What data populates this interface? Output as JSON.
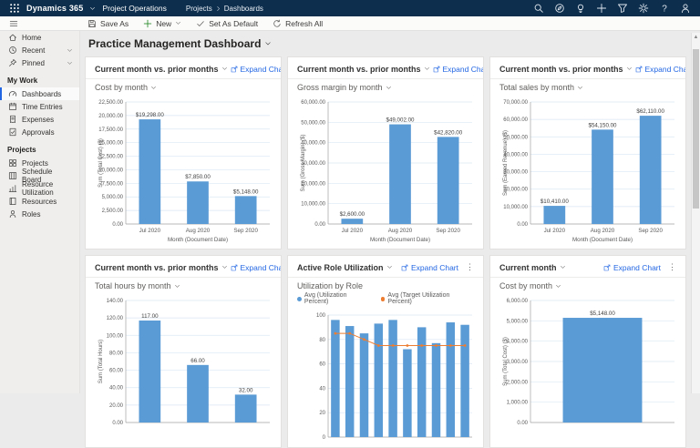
{
  "colors": {
    "topbar": "#0d2e4d",
    "accent": "#2266e3",
    "bar": "#5b9bd5",
    "line": "#ed7d31",
    "plus": "#107c10"
  },
  "header": {
    "app": "Dynamics 365",
    "environment": "Project Operations",
    "breadcrumb": [
      "Projects",
      "Dashboards"
    ],
    "icons": [
      "search",
      "compass",
      "lightbulb",
      "plus",
      "filter",
      "gear",
      "help",
      "user"
    ]
  },
  "command_bar": {
    "items": [
      {
        "label": "Save As",
        "icon": "save"
      },
      {
        "label": "New",
        "icon": "plus",
        "chevron": true
      },
      {
        "label": "Set As Default",
        "icon": "check"
      },
      {
        "label": "Refresh All",
        "icon": "refresh"
      }
    ]
  },
  "page": {
    "title": "Practice Management Dashboard"
  },
  "sidebar": {
    "top": [
      {
        "label": "Home",
        "icon": "home"
      },
      {
        "label": "Recent",
        "icon": "clock",
        "chevron": true
      },
      {
        "label": "Pinned",
        "icon": "pin",
        "chevron": true
      }
    ],
    "sections": [
      {
        "title": "My Work",
        "items": [
          {
            "label": "Dashboards",
            "icon": "gauge",
            "active": true
          },
          {
            "label": "Time Entries",
            "icon": "calendar"
          },
          {
            "label": "Expenses",
            "icon": "receipt"
          },
          {
            "label": "Approvals",
            "icon": "doccheck"
          }
        ]
      },
      {
        "title": "Projects",
        "items": [
          {
            "label": "Projects",
            "icon": "grid"
          },
          {
            "label": "Schedule Board",
            "icon": "board"
          },
          {
            "label": "Resource Utilization",
            "icon": "bars"
          },
          {
            "label": "Resources",
            "icon": "book"
          },
          {
            "label": "Roles",
            "icon": "person"
          }
        ]
      }
    ]
  },
  "cards": [
    {
      "title": "Current month vs. prior months",
      "expand_label": "Expand Chart"
    },
    {
      "title": "Current month vs. prior months",
      "expand_label": "Expand Chart"
    },
    {
      "title": "Current month vs. prior months",
      "expand_label": "Expand Chart"
    },
    {
      "title": "Current month vs. prior months",
      "expand_label": "Expand Chart"
    },
    {
      "title": "Active Role Utilization",
      "expand_label": "Expand Chart"
    },
    {
      "title": "Current month",
      "expand_label": "Expand Chart"
    }
  ],
  "chart_data": [
    {
      "type": "bar",
      "title": "Cost by month",
      "categories": [
        "Jul 2020",
        "Aug 2020",
        "Sep 2020"
      ],
      "values": [
        19298,
        7850,
        5148
      ],
      "labels": [
        "$19,298.00",
        "$7,850.00",
        "$5,148.00"
      ],
      "ylabel": "Sum (Total Cost) ($)",
      "xlabel": "Month (Document Date)",
      "ylim": [
        0,
        22500
      ],
      "ystep": 2500,
      "decimals": 2,
      "grid": true,
      "legend": "none"
    },
    {
      "type": "bar",
      "title": "Gross margin by month",
      "categories": [
        "Jul 2020",
        "Aug 2020",
        "Sep 2020"
      ],
      "values": [
        2600,
        49002,
        42820
      ],
      "labels": [
        "$2,600.00",
        "$49,002.00",
        "$42,820.00"
      ],
      "ylabel": "Sum (Gross Margin) ($)",
      "xlabel": "Month (Document Date)",
      "ylim": [
        0,
        60000
      ],
      "ystep": 10000,
      "decimals": 2,
      "grid": true,
      "legend": "none"
    },
    {
      "type": "bar",
      "title": "Total sales by month",
      "categories": [
        "Jul 2020",
        "Aug 2020",
        "Sep 2020"
      ],
      "values": [
        10410,
        54150,
        62110
      ],
      "labels": [
        "$10,410.00",
        "$54,150.00",
        "$62,110.00"
      ],
      "ylabel": "Sum (Earned Revenue) ($)",
      "xlabel": "Month (Document Date)",
      "ylim": [
        0,
        70000
      ],
      "ystep": 10000,
      "decimals": 2,
      "grid": true,
      "legend": "none"
    },
    {
      "type": "bar",
      "title": "Total hours by month",
      "categories": [
        "",
        "",
        ""
      ],
      "values": [
        117,
        66,
        32
      ],
      "labels": [
        "117.00",
        "66.00",
        "32.00"
      ],
      "ylabel": "Sum (Total Hours)",
      "xlabel": "",
      "ylim": [
        0,
        140
      ],
      "ystep": 20,
      "decimals": 2,
      "grid": true,
      "legend": "none"
    },
    {
      "type": "bar-line",
      "title": "Utilization by Role",
      "categories": [
        "",
        "",
        "",
        "",
        "",
        "",
        "",
        "",
        "",
        ""
      ],
      "series": [
        {
          "name": "Avg (Utilization Percent)",
          "type": "bar",
          "values": [
            96,
            91,
            85,
            93,
            96,
            72,
            90,
            77,
            94,
            92
          ]
        },
        {
          "name": "Avg (Target Utilization Percent)",
          "type": "line",
          "values": [
            85,
            85,
            80,
            75,
            75,
            75,
            75,
            75,
            75,
            75
          ]
        }
      ],
      "ylabel": "",
      "xlabel": "",
      "ylim": [
        0,
        100
      ],
      "ystep": 20,
      "decimals": 0,
      "grid": true,
      "legend": "top"
    },
    {
      "type": "bar",
      "title": "Cost by month",
      "categories": [
        ""
      ],
      "values": [
        5148
      ],
      "labels": [
        "$5,148.00"
      ],
      "ylabel": "Sum (Total Cost) ($)",
      "xlabel": "",
      "ylim": [
        0,
        6000
      ],
      "ystep": 1000,
      "decimals": 2,
      "grid": true,
      "legend": "none"
    }
  ]
}
